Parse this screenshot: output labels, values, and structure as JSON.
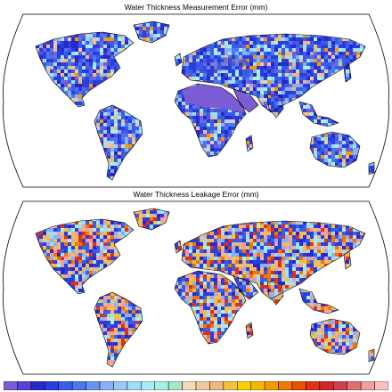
{
  "maps": [
    {
      "title": "Water Thickness Measurement Error (mm)",
      "projection": "Robinson",
      "dominant_colors": [
        "#3a4fd8",
        "#7b5fd1",
        "#8ad8f2",
        "#f3a87b"
      ]
    },
    {
      "title": "Water Thickness Leakage Error (mm)",
      "projection": "Robinson",
      "dominant_colors": [
        "#3a4fd8",
        "#8ad8f2",
        "#f5a878",
        "#e24a3b"
      ]
    }
  ],
  "colorbar": {
    "colors": [
      "#7a5cd4",
      "#5a3fd8",
      "#2a28c8",
      "#2a3ee0",
      "#3a5ce8",
      "#4a78f0",
      "#6a94f4",
      "#8ab0f6",
      "#96c8f8",
      "#a2dcf8",
      "#a8ecf4",
      "#a8f0e4",
      "#a8e8c8",
      "#f4dcb8",
      "#f0c8a0",
      "#f0b880",
      "#f4c040",
      "#f8d000",
      "#f8b800",
      "#f89800",
      "#f07800",
      "#e85000",
      "#e03018",
      "#d02828",
      "#d04050",
      "#e07070",
      "#f0a0a0",
      "#f8c0c0"
    ]
  }
}
